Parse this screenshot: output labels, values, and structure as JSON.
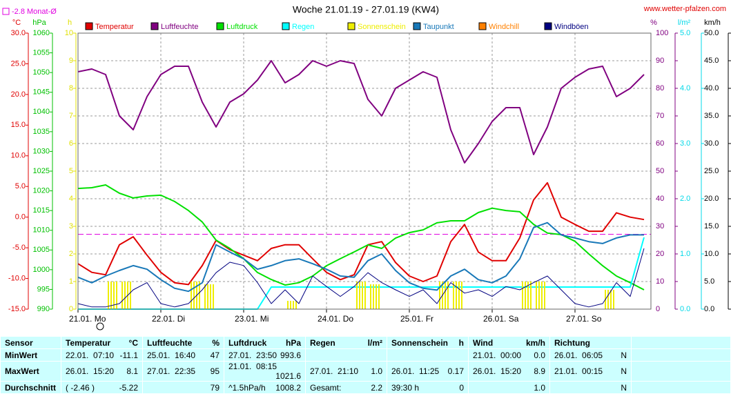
{
  "chart_data": {
    "type": "line",
    "title": "Woche 21.01.19 - 27.01.19 (KW4)",
    "source": "www.wetter-pfalzen.com",
    "monthly_avg": {
      "value": -2.8,
      "label": "-2.8 Monat-Ø",
      "color": "#e000e0"
    },
    "x": [
      0,
      4,
      8,
      12,
      16,
      20,
      24,
      28,
      32,
      36,
      40,
      44,
      48,
      52,
      56,
      60,
      64,
      68,
      72,
      76,
      80,
      84,
      88,
      92,
      96,
      100,
      104,
      108,
      112,
      116,
      120,
      124,
      128,
      132,
      136,
      140,
      144,
      148,
      152,
      156,
      160,
      164
    ],
    "xlim": [
      0,
      166
    ],
    "xticks": [
      {
        "value": 0,
        "label": "21.01. Mo"
      },
      {
        "value": 24,
        "label": "22.01. Di"
      },
      {
        "value": 48,
        "label": "23.01. Mi"
      },
      {
        "value": 72,
        "label": "24.01. Do"
      },
      {
        "value": 96,
        "label": "25.01. Fr"
      },
      {
        "value": 120,
        "label": "26.01. Sa"
      },
      {
        "value": 144,
        "label": "27.01. So"
      }
    ],
    "grid": true,
    "axes": {
      "temp": {
        "unit": "°C",
        "color": "#e00000",
        "lim": [
          -15,
          30
        ],
        "ticks": [
          {
            "value": 30,
            "label": "30.0"
          },
          {
            "value": 25,
            "label": "25.0"
          },
          {
            "value": 20,
            "label": "20.0"
          },
          {
            "value": 15,
            "label": "15.0"
          },
          {
            "value": 10,
            "label": "10.0"
          },
          {
            "value": 5,
            "label": "5.0"
          },
          {
            "value": 0,
            "label": "0.0"
          },
          {
            "value": -5,
            "label": "-5.0"
          },
          {
            "value": -10,
            "label": "-10.0"
          },
          {
            "value": -15,
            "label": "-15.0"
          }
        ]
      },
      "pressure": {
        "unit": "hPa",
        "color": "#00c000",
        "lim": [
          990,
          1060
        ],
        "ticks": [
          1060,
          1055,
          1050,
          1045,
          1040,
          1035,
          1030,
          1025,
          1020,
          1015,
          1010,
          1005,
          1000,
          995,
          990
        ]
      },
      "sun": {
        "unit": "h",
        "color": "#e0e000",
        "lim": [
          0,
          10
        ],
        "ticks": [
          10,
          9,
          8,
          7,
          6,
          5,
          4,
          3,
          2,
          1,
          0
        ]
      },
      "humidity": {
        "unit": "%",
        "color": "#800080",
        "lim": [
          0,
          100
        ],
        "ticks": [
          100,
          90,
          80,
          70,
          60,
          50,
          40,
          30,
          20,
          10,
          0
        ]
      },
      "rain": {
        "unit": "l/m²",
        "color": "#00d8e8",
        "lim": [
          0,
          5
        ],
        "ticks": [
          {
            "value": 5,
            "label": "5.0"
          },
          {
            "value": 4,
            "label": "4.0"
          },
          {
            "value": 3,
            "label": "3.0"
          },
          {
            "value": 2,
            "label": "2.0"
          },
          {
            "value": 1,
            "label": "1.0"
          },
          {
            "value": 0,
            "label": "0.0"
          }
        ]
      },
      "wind": {
        "unit": "km/h",
        "color": "#000000",
        "lim": [
          0,
          50
        ],
        "ticks": [
          {
            "value": 50,
            "label": "50.0"
          },
          {
            "value": 45,
            "label": "45.0"
          },
          {
            "value": 40,
            "label": "40.0"
          },
          {
            "value": 35,
            "label": "35.0"
          },
          {
            "value": 30,
            "label": "30.0"
          },
          {
            "value": 25,
            "label": "25.0"
          },
          {
            "value": 20,
            "label": "20.0"
          },
          {
            "value": 15,
            "label": "15.0"
          },
          {
            "value": 10,
            "label": "10.0"
          },
          {
            "value": 5,
            "label": "5.0"
          },
          {
            "value": 0,
            "label": "0.0"
          }
        ]
      }
    },
    "series": [
      {
        "name": "Temperatur",
        "type": "line",
        "axis": "temp",
        "color": "#e00000",
        "values": [
          -7.6,
          -9.0,
          -9.4,
          -4.5,
          -3.2,
          -6.2,
          -9.0,
          -10.7,
          -11.0,
          -7.9,
          -3.8,
          -5.3,
          -6.2,
          -7.1,
          -5.1,
          -4.5,
          -4.5,
          -6.8,
          -9.0,
          -10.2,
          -9.4,
          -4.5,
          -4.0,
          -7.4,
          -9.6,
          -10.5,
          -9.6,
          -4.0,
          -1.2,
          -5.7,
          -7.1,
          -7.1,
          -3.4,
          2.8,
          5.6,
          0.0,
          -1.2,
          -2.3,
          -2.3,
          0.7,
          0.0,
          -0.4
        ]
      },
      {
        "name": "Luftfeuchte",
        "type": "line",
        "axis": "humidity",
        "color": "#800080",
        "values": [
          86,
          87,
          85,
          70,
          65,
          77,
          85,
          88,
          88,
          75,
          66,
          75,
          78,
          83,
          90,
          82,
          85,
          90,
          88,
          90,
          89,
          76,
          70,
          80,
          83,
          86,
          84,
          65,
          53,
          60,
          68,
          73,
          73,
          56,
          66,
          80,
          84,
          87,
          88,
          77,
          80,
          85
        ]
      },
      {
        "name": "Luftdruck",
        "type": "line",
        "axis": "pressure",
        "color": "#00e000",
        "values": [
          1020.6,
          1020.8,
          1021.5,
          1019.4,
          1018.2,
          1018.7,
          1018.9,
          1017.3,
          1015.0,
          1012.1,
          1007.5,
          1005.4,
          1002.8,
          999.3,
          997.5,
          996.1,
          996.7,
          998.4,
          1001.0,
          1002.8,
          1004.5,
          1006.3,
          1005.4,
          1008.0,
          1009.4,
          1010.1,
          1011.9,
          1012.4,
          1012.4,
          1014.5,
          1015.6,
          1015.0,
          1014.7,
          1011.5,
          1009.3,
          1008.9,
          1007.2,
          1004.0,
          1001.0,
          998.4,
          996.7,
          994.9
        ]
      },
      {
        "name": "Regen",
        "type": "line",
        "axis": "rain",
        "color": "#00ffff",
        "values": [
          0,
          0,
          0,
          0,
          0,
          0,
          0,
          0,
          0,
          0,
          0,
          0,
          0,
          0,
          0.4,
          0.4,
          0.4,
          0.4,
          0.4,
          0.4,
          0.4,
          0.4,
          0.4,
          0.4,
          0.4,
          0.4,
          0.4,
          0.4,
          0.4,
          0.4,
          0.4,
          0.4,
          0.4,
          0.4,
          0.4,
          0.4,
          0.4,
          0.4,
          0.4,
          0.4,
          0.4,
          1.3
        ]
      },
      {
        "name": "Sonnenschein",
        "type": "bar",
        "axis": "sun",
        "color": "#eeee00",
        "values": [
          0,
          0,
          1.0,
          1.0,
          0,
          0,
          0,
          0,
          1.0,
          0.9,
          0,
          0,
          0,
          0,
          0,
          0.3,
          0,
          0,
          0,
          0,
          1.0,
          0.9,
          0,
          0,
          0,
          0,
          1.0,
          1.0,
          0,
          0,
          0,
          0,
          1.0,
          1.0,
          0,
          0,
          0,
          0,
          0.7,
          0,
          0,
          0
        ]
      },
      {
        "name": "Taupunkt",
        "type": "line",
        "axis": "temp",
        "color": "#1878b8",
        "values": [
          -9.8,
          -10.7,
          -9.6,
          -8.7,
          -7.9,
          -8.5,
          -10.2,
          -11.6,
          -12.1,
          -10.7,
          -4.5,
          -5.7,
          -6.8,
          -8.5,
          -7.9,
          -7.1,
          -6.8,
          -7.6,
          -8.5,
          -9.6,
          -9.8,
          -7.1,
          -6.0,
          -8.7,
          -10.7,
          -11.6,
          -11.9,
          -9.6,
          -8.5,
          -10.2,
          -10.7,
          -9.6,
          -6.8,
          -1.7,
          -0.9,
          -2.9,
          -3.4,
          -4.0,
          -4.3,
          -3.4,
          -2.9,
          -2.9
        ]
      },
      {
        "name": "Windchill",
        "type": "line",
        "axis": "temp",
        "color": "#ff8000",
        "values": [
          null,
          null,
          null,
          null,
          null,
          null,
          null,
          null,
          null,
          null,
          null,
          null,
          null,
          null,
          null,
          null,
          null,
          null,
          null,
          null,
          null,
          null,
          null,
          null,
          null,
          null,
          null,
          null,
          null,
          null,
          null,
          null,
          null,
          null,
          null,
          null,
          null,
          null,
          null,
          null,
          null,
          null
        ]
      },
      {
        "name": "Windböen",
        "type": "line",
        "axis": "wind",
        "color": "#000080",
        "values": [
          1.0,
          0.4,
          0.4,
          1.0,
          3.5,
          4.8,
          1.0,
          0.4,
          1.0,
          3.5,
          6.6,
          8.5,
          7.9,
          4.8,
          1.0,
          3.5,
          1.0,
          6.0,
          4.1,
          2.3,
          4.1,
          6.6,
          4.8,
          3.5,
          2.3,
          3.5,
          1.0,
          4.8,
          2.9,
          3.5,
          2.3,
          4.1,
          3.5,
          4.8,
          6.0,
          3.5,
          1.0,
          0.4,
          1.0,
          4.8,
          2.3,
          11.0
        ]
      }
    ]
  },
  "table": {
    "corner": "Sensor",
    "groups": [
      {
        "name": "Temperatur",
        "unit": "°C"
      },
      {
        "name": "Luftfeuchte",
        "unit": "%"
      },
      {
        "name": "Luftdruck",
        "unit": "hPa"
      },
      {
        "name": "Regen",
        "unit": "l/m²"
      },
      {
        "name": "Sonnenschein",
        "unit": "h"
      },
      {
        "name": "Wind",
        "unit": "km/h"
      },
      {
        "name": "Richtung",
        "unit": null
      }
    ],
    "rows": [
      {
        "label": "MinWert",
        "cells": [
          [
            "22.01.  07:10",
            "-11.1"
          ],
          [
            "25.01.  16:40",
            "47"
          ],
          [
            "27.01.  23:50",
            "993.6"
          ],
          [
            null,
            null
          ],
          [
            null,
            null
          ],
          [
            "21.01.  00:00",
            "0.0"
          ],
          [
            "26.01.  06:05",
            "N"
          ]
        ]
      },
      {
        "label": "MaxWert",
        "cells": [
          [
            "26.01.  15:20",
            "8.1"
          ],
          [
            "27.01.  22:35",
            "95"
          ],
          [
            "21.01.  08:15",
            "1021.6"
          ],
          [
            "27.01.  21:10",
            "1.0"
          ],
          [
            "26.01.  11:25",
            "0.17"
          ],
          [
            "26.01.  15:20",
            "8.9"
          ],
          [
            "21.01.  00:15",
            "N"
          ]
        ]
      },
      {
        "label": "Durchschnitt",
        "cells": [
          [
            "( -2.46 )",
            "-5.22"
          ],
          [
            null,
            "79"
          ],
          [
            "^1.5hPa/h",
            "1008.2"
          ],
          [
            "Gesamt:",
            "2.2"
          ],
          [
            "39:30 h",
            "0"
          ],
          [
            null,
            "1.0"
          ],
          [
            null,
            "N"
          ]
        ]
      }
    ]
  }
}
